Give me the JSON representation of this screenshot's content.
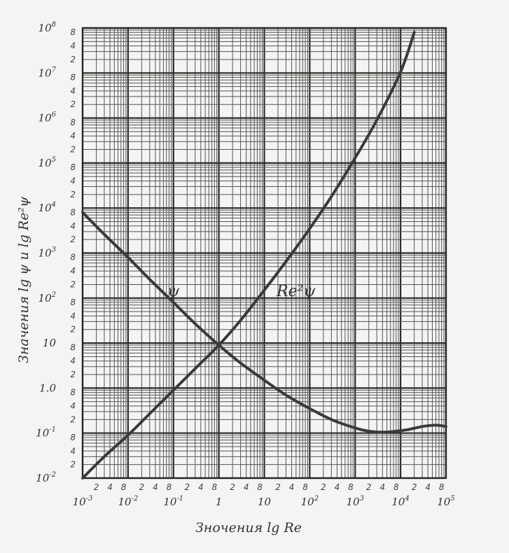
{
  "chart_data": {
    "type": "line",
    "x_scale": "log",
    "y_scale": "log",
    "xlim": [
      0.001,
      100000
    ],
    "ylim": [
      0.01,
      100000000
    ],
    "grid": true,
    "xlabel": "Зночения  lg Re",
    "ylabel": "Значения  lg ψ  и  lg Re²ψ",
    "x_major_labels": [
      {
        "base": "10",
        "exp": "-3"
      },
      {
        "base": "10",
        "exp": "-2"
      },
      {
        "base": "10",
        "exp": "-1"
      },
      {
        "base": "1",
        "exp": ""
      },
      {
        "base": "10",
        "exp": ""
      },
      {
        "base": "10",
        "exp": "2"
      },
      {
        "base": "10",
        "exp": "3"
      },
      {
        "base": "10",
        "exp": "4"
      },
      {
        "base": "10",
        "exp": "5"
      }
    ],
    "y_major_labels": [
      {
        "base": "10",
        "exp": "-2"
      },
      {
        "base": "10",
        "exp": "-1"
      },
      {
        "base": "1.0",
        "exp": ""
      },
      {
        "base": "10",
        "exp": ""
      },
      {
        "base": "10",
        "exp": "2"
      },
      {
        "base": "10",
        "exp": "3"
      },
      {
        "base": "10",
        "exp": "4"
      },
      {
        "base": "10",
        "exp": "5"
      },
      {
        "base": "10",
        "exp": "6"
      },
      {
        "base": "10",
        "exp": "7"
      },
      {
        "base": "10",
        "exp": "8"
      }
    ],
    "minor_tick_labels": [
      "2",
      "4",
      "8"
    ],
    "series": [
      {
        "name": "ψ",
        "x": [
          0.001,
          0.003,
          0.01,
          0.03,
          0.1,
          0.3,
          1,
          3,
          10,
          30,
          100,
          300,
          1000,
          2000,
          4000,
          8000,
          15000,
          30000,
          60000,
          100000
        ],
        "y": [
          8000,
          2600,
          800,
          260,
          80,
          27,
          9,
          3.6,
          1.5,
          0.7,
          0.35,
          0.2,
          0.13,
          0.11,
          0.105,
          0.11,
          0.12,
          0.14,
          0.15,
          0.14
        ]
      },
      {
        "name": "Re²ψ",
        "x": [
          0.001,
          0.003,
          0.01,
          0.03,
          0.1,
          0.3,
          1,
          3,
          10,
          30,
          100,
          300,
          1000,
          3000,
          10000,
          20000
        ],
        "y": [
          0.01,
          0.03,
          0.09,
          0.27,
          0.9,
          2.7,
          9,
          32,
          150,
          650,
          3500,
          18000,
          130000,
          900000,
          10500000,
          80000000
        ]
      }
    ],
    "curve_labels": [
      {
        "text": "ψ",
        "x": 0.1,
        "y": 110
      },
      {
        "text": "Re²ψ",
        "x": 50,
        "y": 110
      }
    ]
  }
}
